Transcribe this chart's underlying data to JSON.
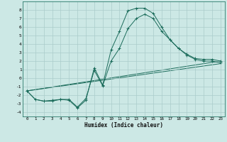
{
  "xlabel": "Humidex (Indice chaleur)",
  "background_color": "#cce8e5",
  "grid_color": "#aaccca",
  "line_color": "#1a6b5a",
  "xlim": [
    -0.5,
    23.5
  ],
  "ylim": [
    -4.5,
    9.0
  ],
  "xticks": [
    0,
    1,
    2,
    3,
    4,
    5,
    6,
    7,
    8,
    9,
    10,
    11,
    12,
    13,
    14,
    15,
    16,
    17,
    18,
    19,
    20,
    21,
    22,
    23
  ],
  "yticks": [
    -4,
    -3,
    -2,
    -1,
    0,
    1,
    2,
    3,
    4,
    5,
    6,
    7,
    8
  ],
  "series1_x": [
    0,
    1,
    2,
    3,
    4,
    5,
    6,
    7,
    8,
    9,
    10,
    11,
    12,
    13,
    14,
    15,
    16,
    17,
    18,
    19,
    20,
    21,
    22,
    23
  ],
  "series1_y": [
    -1.5,
    -2.5,
    -2.7,
    -2.7,
    -2.5,
    -2.6,
    -3.5,
    -2.6,
    1.2,
    -0.8,
    3.3,
    5.5,
    7.9,
    8.2,
    8.2,
    7.6,
    6.0,
    4.5,
    3.5,
    2.8,
    2.3,
    2.2,
    2.2,
    2.0
  ],
  "series2_x": [
    0,
    1,
    2,
    3,
    4,
    5,
    6,
    7,
    8,
    9,
    10,
    11,
    12,
    13,
    14,
    15,
    16,
    17,
    18,
    19,
    20,
    21,
    22,
    23
  ],
  "series2_y": [
    -1.5,
    -2.5,
    -2.7,
    -2.6,
    -2.5,
    -2.5,
    -3.4,
    -2.4,
    0.9,
    -0.9,
    2.0,
    3.5,
    5.8,
    7.0,
    7.5,
    7.0,
    5.5,
    4.5,
    3.5,
    2.7,
    2.2,
    2.0,
    2.0,
    1.8
  ],
  "series3_x": [
    0,
    23
  ],
  "series3_y": [
    -1.5,
    2.0
  ],
  "series4_x": [
    0,
    23
  ],
  "series4_y": [
    -1.5,
    1.7
  ]
}
